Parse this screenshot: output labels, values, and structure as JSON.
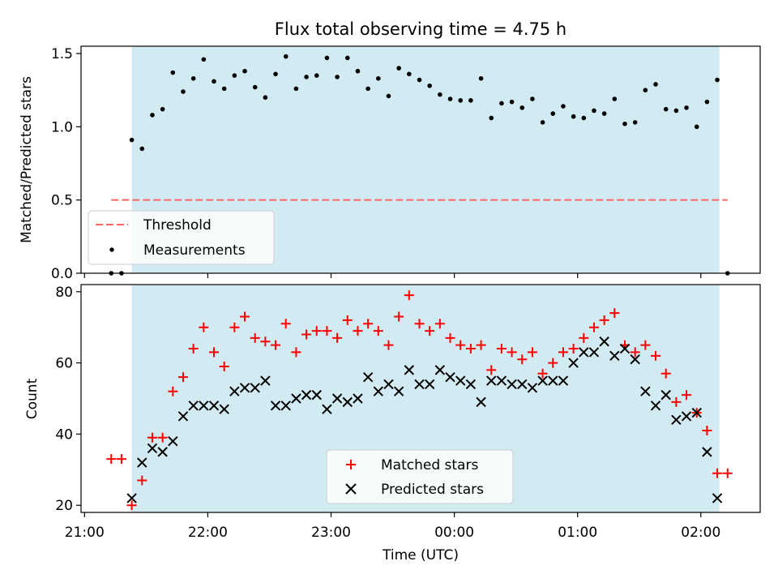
{
  "chart_data": {
    "type": "scatter",
    "title": "Flux total observing time = 4.75 h",
    "xlabel": "Time (UTC)",
    "x_ticks": [
      "21:00",
      "22:00",
      "23:00",
      "00:00",
      "01:00",
      "02:00"
    ],
    "observing_window": [
      "21:23",
      "02:09"
    ],
    "colors": {
      "window": "#add8e6",
      "threshold": "#ff6666",
      "measurements": "#000000",
      "matched": "#ff0000",
      "predicted": "#000000"
    },
    "panels": [
      {
        "ylabel": "Matched/Predicted stars",
        "ylim": [
          0,
          1.55
        ],
        "y_ticks": [
          "0.0",
          "0.5",
          "1.0",
          "1.5"
        ],
        "legend": {
          "placement": "lower-left",
          "entries": [
            "Threshold",
            "Measurements"
          ]
        },
        "threshold": {
          "name": "Threshold",
          "value": 0.5,
          "x_range": [
            "21:13",
            "02:13"
          ]
        },
        "series": [
          {
            "name": "Measurements",
            "marker": "dot",
            "x": [
              "21:13",
              "21:18",
              "21:23",
              "21:28",
              "21:33",
              "21:38",
              "21:43",
              "21:48",
              "21:53",
              "21:58",
              "22:03",
              "22:08",
              "22:13",
              "22:18",
              "22:23",
              "22:28",
              "22:33",
              "22:38",
              "22:43",
              "22:48",
              "22:53",
              "22:58",
              "23:03",
              "23:08",
              "23:13",
              "23:18",
              "23:23",
              "23:28",
              "23:33",
              "23:38",
              "23:43",
              "23:48",
              "23:53",
              "23:58",
              "00:03",
              "00:08",
              "00:13",
              "00:18",
              "00:23",
              "00:28",
              "00:33",
              "00:38",
              "00:43",
              "00:48",
              "00:53",
              "00:58",
              "01:03",
              "01:08",
              "01:13",
              "01:18",
              "01:23",
              "01:28",
              "01:33",
              "01:38",
              "01:43",
              "01:48",
              "01:53",
              "01:58",
              "02:03",
              "02:08",
              "02:13"
            ],
            "y": [
              0,
              0,
              0.91,
              0.85,
              1.08,
              1.12,
              1.37,
              1.24,
              1.33,
              1.46,
              1.31,
              1.26,
              1.35,
              1.38,
              1.27,
              1.2,
              1.36,
              1.48,
              1.26,
              1.34,
              1.35,
              1.47,
              1.34,
              1.47,
              1.38,
              1.26,
              1.33,
              1.21,
              1.4,
              1.36,
              1.32,
              1.28,
              1.22,
              1.19,
              1.18,
              1.18,
              1.33,
              1.06,
              1.16,
              1.17,
              1.13,
              1.19,
              1.03,
              1.09,
              1.14,
              1.07,
              1.06,
              1.11,
              1.09,
              1.19,
              1.02,
              1.03,
              1.25,
              1.29,
              1.12,
              1.11,
              1.13,
              1.0,
              1.17,
              1.32,
              0
            ]
          }
        ]
      },
      {
        "ylabel": "Count",
        "ylim": [
          18,
          82
        ],
        "y_ticks": [
          "20",
          "40",
          "60",
          "80"
        ],
        "legend": {
          "placement": "lower-center",
          "entries": [
            "Matched stars",
            "Predicted stars"
          ]
        },
        "series": [
          {
            "name": "Matched stars",
            "marker": "plus",
            "x": [
              "21:13",
              "21:18",
              "21:23",
              "21:28",
              "21:33",
              "21:38",
              "21:43",
              "21:48",
              "21:53",
              "21:58",
              "22:03",
              "22:08",
              "22:13",
              "22:18",
              "22:23",
              "22:28",
              "22:33",
              "22:38",
              "22:43",
              "22:48",
              "22:53",
              "22:58",
              "23:03",
              "23:08",
              "23:13",
              "23:18",
              "23:23",
              "23:28",
              "23:33",
              "23:38",
              "23:43",
              "23:48",
              "23:53",
              "23:58",
              "00:03",
              "00:08",
              "00:13",
              "00:18",
              "00:23",
              "00:28",
              "00:33",
              "00:38",
              "00:43",
              "00:48",
              "00:53",
              "00:58",
              "01:03",
              "01:08",
              "01:13",
              "01:18",
              "01:23",
              "01:28",
              "01:33",
              "01:38",
              "01:43",
              "01:48",
              "01:53",
              "01:58",
              "02:03",
              "02:08",
              "02:13"
            ],
            "y": [
              33,
              33,
              20,
              27,
              39,
              39,
              52,
              56,
              64,
              70,
              63,
              59,
              70,
              73,
              67,
              66,
              65,
              71,
              63,
              68,
              69,
              69,
              67,
              72,
              69,
              71,
              69,
              65,
              73,
              79,
              71,
              69,
              71,
              67,
              65,
              64,
              65,
              58,
              64,
              63,
              61,
              63,
              57,
              60,
              63,
              64,
              67,
              70,
              72,
              74,
              65,
              63,
              65,
              62,
              57,
              49,
              51,
              46,
              41,
              29,
              29
            ]
          },
          {
            "name": "Predicted stars",
            "marker": "x",
            "x": [
              "21:23",
              "21:28",
              "21:33",
              "21:38",
              "21:43",
              "21:48",
              "21:53",
              "21:58",
              "22:03",
              "22:08",
              "22:13",
              "22:18",
              "22:23",
              "22:28",
              "22:33",
              "22:38",
              "22:43",
              "22:48",
              "22:53",
              "22:58",
              "23:03",
              "23:08",
              "23:13",
              "23:18",
              "23:23",
              "23:28",
              "23:33",
              "23:38",
              "23:43",
              "23:48",
              "23:53",
              "23:58",
              "00:03",
              "00:08",
              "00:13",
              "00:18",
              "00:23",
              "00:28",
              "00:33",
              "00:38",
              "00:43",
              "00:48",
              "00:53",
              "00:58",
              "01:03",
              "01:08",
              "01:13",
              "01:18",
              "01:23",
              "01:28",
              "01:33",
              "01:38",
              "01:43",
              "01:48",
              "01:53",
              "01:58",
              "02:03",
              "02:08"
            ],
            "y": [
              22,
              32,
              36,
              35,
              38,
              45,
              48,
              48,
              48,
              47,
              52,
              53,
              53,
              55,
              48,
              48,
              50,
              51,
              51,
              47,
              50,
              49,
              50,
              56,
              52,
              54,
              52,
              58,
              54,
              54,
              58,
              56,
              55,
              54,
              49,
              55,
              55,
              54,
              54,
              53,
              55,
              55,
              55,
              60,
              63,
              63,
              66,
              62,
              64,
              61,
              52,
              48,
              51,
              44,
              45,
              46,
              35,
              22
            ]
          }
        ]
      }
    ]
  }
}
